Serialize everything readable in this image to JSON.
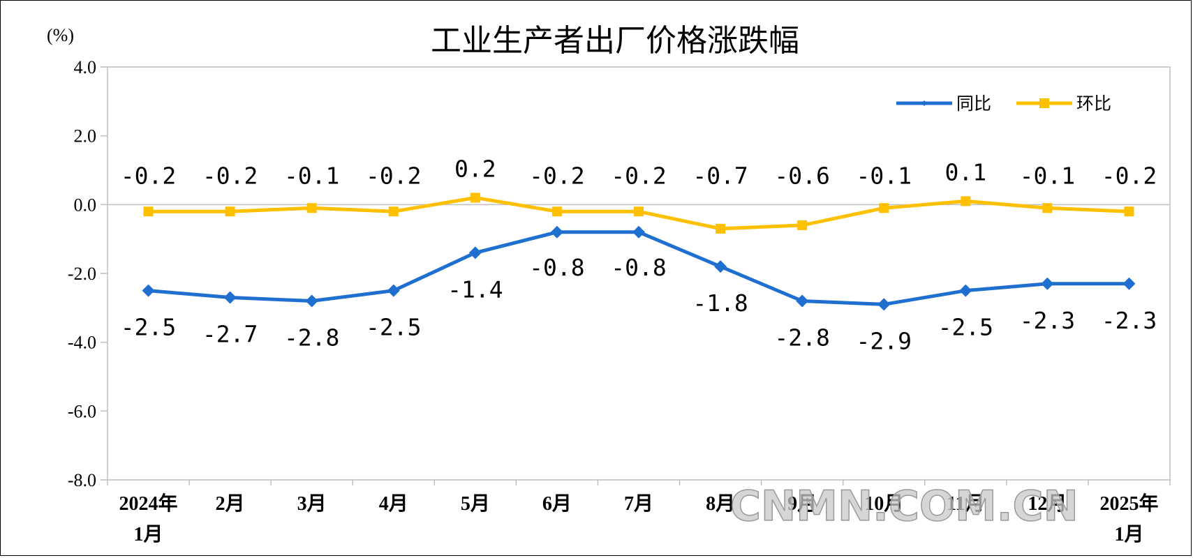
{
  "chart_data": {
    "type": "line",
    "title": "工业生产者出厂价格涨跌幅",
    "unit": "(%)",
    "x": [
      "2024年1月",
      "2月",
      "3月",
      "4月",
      "5月",
      "6月",
      "7月",
      "8月",
      "9月",
      "10月",
      "11月",
      "12月",
      "2025年1月"
    ],
    "x_tick_lines": [
      [
        "2024年",
        "1月"
      ],
      [
        "2月"
      ],
      [
        "3月"
      ],
      [
        "4月"
      ],
      [
        "5月"
      ],
      [
        "6月"
      ],
      [
        "7月"
      ],
      [
        "8月"
      ],
      [
        "9月"
      ],
      [
        "10月"
      ],
      [
        "11月"
      ],
      [
        "12月"
      ],
      [
        "2025年",
        "1月"
      ]
    ],
    "ylim": [
      -8.0,
      4.0
    ],
    "yticks": [
      "4.0",
      "2.0",
      "0.0",
      "-2.0",
      "-4.0",
      "-6.0",
      "-8.0"
    ],
    "grid": false,
    "legend_position": "top-right",
    "series": [
      {
        "name": "同比",
        "color": "#1f6fd1",
        "marker": "diamond",
        "values": [
          -2.5,
          -2.7,
          -2.8,
          -2.5,
          -1.4,
          -0.8,
          -0.8,
          -1.8,
          -2.8,
          -2.9,
          -2.5,
          -2.3,
          -2.3
        ],
        "labels": [
          "-2.5",
          "-2.7",
          "-2.8",
          "-2.5",
          "-1.4",
          "-0.8",
          "-0.8",
          "-1.8",
          "-2.8",
          "-2.9",
          "-2.5",
          "-2.3",
          "-2.3"
        ]
      },
      {
        "name": "环比",
        "color": "#ffc000",
        "marker": "square",
        "values": [
          -0.2,
          -0.2,
          -0.1,
          -0.2,
          0.2,
          -0.2,
          -0.2,
          -0.7,
          -0.6,
          -0.1,
          0.1,
          -0.1,
          -0.2
        ],
        "labels": [
          "-0.2",
          "-0.2",
          "-0.1",
          "-0.2",
          "0.2",
          "-0.2",
          "-0.2",
          "-0.7",
          "-0.6",
          "-0.1",
          "0.1",
          "-0.1",
          "-0.2"
        ]
      }
    ]
  },
  "watermark": "CNMN.COM.CN"
}
